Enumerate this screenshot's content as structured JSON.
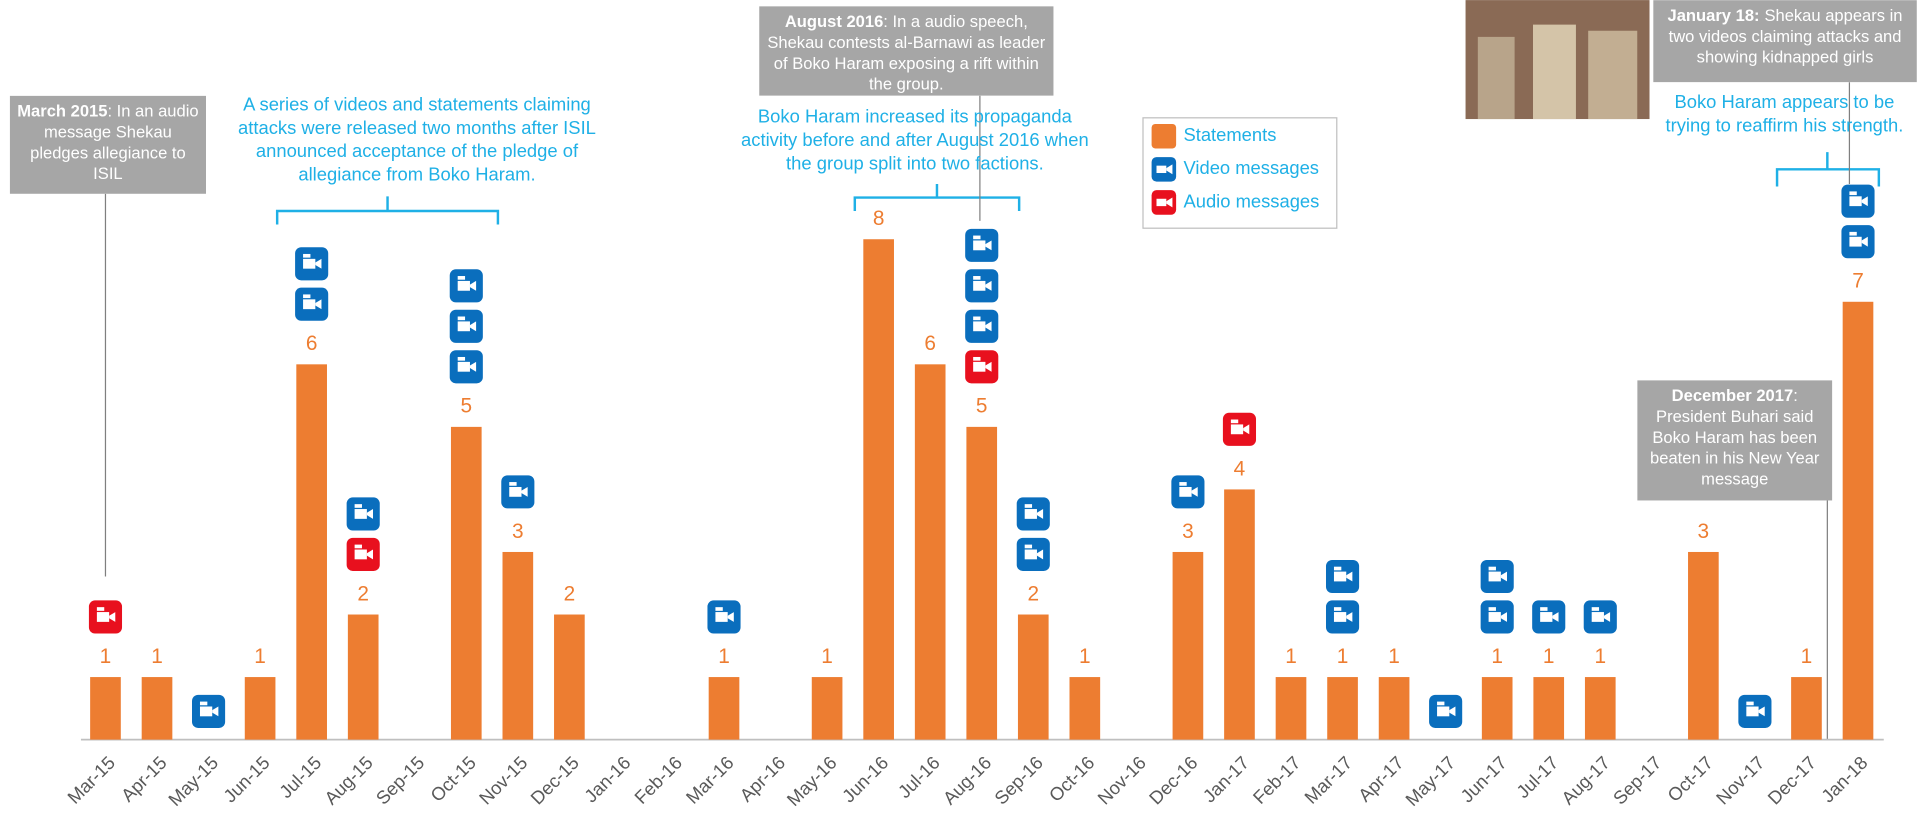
{
  "chart_data": {
    "type": "bar",
    "categories": [
      "Mar-15",
      "Apr-15",
      "May-15",
      "Jun-15",
      "Jul-15",
      "Aug-15",
      "Sep-15",
      "Oct-15",
      "Nov-15",
      "Dec-15",
      "Jan-16",
      "Feb-16",
      "Mar-16",
      "Apr-16",
      "May-16",
      "Jun-16",
      "Jul-16",
      "Aug-16",
      "Sep-16",
      "Oct-16",
      "Nov-16",
      "Dec-16",
      "Jan-17",
      "Feb-17",
      "Mar-17",
      "Apr-17",
      "May-17",
      "Jun-17",
      "Jul-17",
      "Aug-17",
      "Sep-17",
      "Oct-17",
      "Nov-17",
      "Dec-17",
      "Jan-18"
    ],
    "series": [
      {
        "name": "Statements",
        "color": "#ed7d31",
        "values": [
          1,
          1,
          null,
          1,
          6,
          2,
          null,
          5,
          3,
          2,
          null,
          null,
          1,
          null,
          1,
          8,
          6,
          5,
          2,
          1,
          null,
          3,
          4,
          1,
          1,
          1,
          null,
          1,
          1,
          1,
          null,
          3,
          null,
          1,
          7
        ]
      },
      {
        "name": "Video messages",
        "color": "#0a6ebd",
        "values": [
          null,
          null,
          1,
          null,
          2,
          1,
          null,
          3,
          1,
          null,
          null,
          null,
          1,
          null,
          null,
          null,
          null,
          3,
          2,
          null,
          null,
          1,
          null,
          null,
          2,
          null,
          1,
          2,
          1,
          1,
          null,
          null,
          1,
          null,
          2
        ]
      },
      {
        "name": "Audio messages",
        "color": "#e8101e",
        "values": [
          1,
          null,
          null,
          null,
          null,
          1,
          null,
          null,
          null,
          null,
          null,
          null,
          null,
          null,
          null,
          null,
          null,
          1,
          null,
          null,
          null,
          null,
          1,
          null,
          null,
          null,
          null,
          null,
          null,
          null,
          null,
          null,
          null,
          null,
          null
        ]
      }
    ],
    "ylim": [
      0,
      8
    ],
    "annotations": [
      {
        "title": "March 2015",
        "text": ": In an audio message Shekau pledges allegiance to ISIL"
      },
      {
        "text": "A series of videos and statements claiming attacks were released two months after ISIL announced acceptance of the pledge of allegiance from Boko Haram."
      },
      {
        "title": "August 2016",
        "text": ": In a audio speech, Shekau contests al-Barnawi as leader of Boko Haram exposing a rift within the group."
      },
      {
        "text": "Boko Haram increased its propaganda activity before and after August 2016 when the group split into two factions."
      },
      {
        "title": "January 18:",
        "text": "Shekau appears in two videos claiming attacks and showing kidnapped girls"
      },
      {
        "text": "Boko Haram appears to be trying to reaffirm his strength."
      },
      {
        "title": "December 2017",
        "text": ": President Buhari said Boko Haram has been beaten in his New Year message"
      }
    ]
  }
}
